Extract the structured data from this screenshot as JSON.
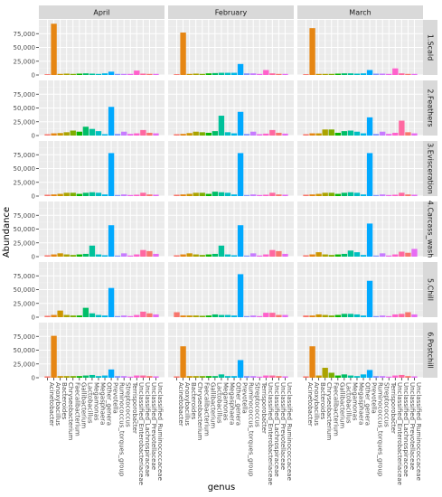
{
  "chart_data": {
    "type": "bar",
    "xlabel": "genus",
    "ylabel": "Abundance",
    "ylim": [
      0,
      100000
    ],
    "y_ticks": [
      0,
      25000,
      50000,
      75000
    ],
    "y_tick_labels": [
      "0",
      "25,000",
      "50,000",
      "75,000"
    ],
    "grid": true,
    "legend": "none",
    "columns": [
      "April",
      "February",
      "March"
    ],
    "rows": [
      "1.Scald",
      "2.Feathers",
      "3.Evisceration",
      "4.Carcass_wash",
      "5.Chill",
      "6.Postchill"
    ],
    "categories": [
      "Acinetobacter",
      "Anoxybacillus",
      "Bacteroides",
      "Chryseobacterium",
      "Faecalibacterium",
      "Gallibacterium",
      "Lactobacillus",
      "Megamonas",
      "Megasphaera",
      "Other_genera",
      "Prevotella",
      "Ruminococcus_torques_group",
      "Streptococcus",
      "Terrisporobacter",
      "Unclassified_Enterobacteriaceae",
      "Unclassified_Lachnospiraceae",
      "Unclassified_Prevotellaceae",
      "Unclassified_Ruminococcaceae"
    ],
    "colors": [
      "#F8766D",
      "#E68613",
      "#CD9600",
      "#ABA300",
      "#7CAE00",
      "#0CB702",
      "#00BE67",
      "#00C19A",
      "#00BFC4",
      "#00B8E7",
      "#00A9FF",
      "#8494FF",
      "#C77CFF",
      "#ED68ED",
      "#FF61CC",
      "#FF68A1",
      "#F8766D",
      "#E76BF3"
    ],
    "panels": [
      {
        "row": "1.Scald",
        "col": "April",
        "values": [
          1500,
          93000,
          2000,
          2500,
          2000,
          2500,
          3000,
          2500,
          2000,
          3000,
          6000,
          2000,
          2000,
          2000,
          8000,
          2500,
          2000,
          2000
        ]
      },
      {
        "row": "1.Scald",
        "col": "February",
        "values": [
          1500,
          77000,
          2000,
          2500,
          2000,
          3000,
          3500,
          4000,
          4000,
          4000,
          20000,
          3000,
          3000,
          2000,
          9000,
          3000,
          2000,
          2000
        ]
      },
      {
        "row": "1.Scald",
        "col": "March",
        "values": [
          1500,
          85000,
          2000,
          2000,
          2000,
          2500,
          3000,
          3000,
          2500,
          3000,
          9000,
          2500,
          2500,
          2000,
          12000,
          3000,
          2000,
          2000
        ]
      },
      {
        "row": "2.Feathers",
        "col": "April",
        "values": [
          2500,
          4000,
          4500,
          6000,
          9000,
          7000,
          16000,
          12000,
          8000,
          2500,
          52000,
          3000,
          7000,
          3000,
          4000,
          10000,
          5000,
          4000
        ]
      },
      {
        "row": "2.Feathers",
        "col": "February",
        "values": [
          2500,
          3000,
          4500,
          7000,
          6000,
          5000,
          8000,
          36000,
          6000,
          4000,
          43000,
          3000,
          7000,
          2500,
          3500,
          10000,
          5000,
          3500
        ]
      },
      {
        "row": "2.Feathers",
        "col": "March",
        "values": [
          2500,
          4000,
          4000,
          11000,
          11000,
          5000,
          8000,
          9000,
          7000,
          4000,
          33000,
          3000,
          7000,
          3000,
          5000,
          27000,
          6000,
          4000
        ]
      },
      {
        "row": "3.Evisceration",
        "col": "April",
        "values": [
          2500,
          3000,
          4000,
          6000,
          6000,
          4000,
          6000,
          7000,
          6000,
          3000,
          78000,
          2000,
          3000,
          2000,
          2500,
          6000,
          3000,
          2500
        ]
      },
      {
        "row": "3.Evisceration",
        "col": "February",
        "values": [
          2500,
          3000,
          4000,
          6000,
          6000,
          4000,
          8000,
          7000,
          6000,
          3000,
          78000,
          2000,
          3000,
          2000,
          2500,
          6000,
          3000,
          2500
        ]
      },
      {
        "row": "3.Evisceration",
        "col": "March",
        "values": [
          2500,
          3000,
          4000,
          6000,
          6000,
          4000,
          6000,
          7000,
          6000,
          3000,
          78000,
          2000,
          3000,
          2000,
          2500,
          6000,
          3000,
          2500
        ]
      },
      {
        "row": "4.Carcass_wash",
        "col": "April",
        "values": [
          2500,
          4000,
          6000,
          4000,
          3000,
          4000,
          5000,
          20000,
          4000,
          2500,
          57000,
          2000,
          6000,
          2000,
          4000,
          12000,
          10000,
          5000
        ]
      },
      {
        "row": "4.Carcass_wash",
        "col": "February",
        "values": [
          2500,
          4000,
          6000,
          4000,
          3000,
          4000,
          5000,
          20000,
          4000,
          2500,
          57000,
          2000,
          6000,
          2000,
          4000,
          12000,
          10000,
          5000
        ]
      },
      {
        "row": "4.Carcass_wash",
        "col": "March",
        "values": [
          2500,
          4000,
          8000,
          4000,
          3000,
          4000,
          5000,
          11000,
          8000,
          3000,
          60000,
          2000,
          6000,
          2000,
          4000,
          9000,
          7000,
          14000
        ]
      },
      {
        "row": "5.Chill",
        "col": "April",
        "values": [
          2500,
          4000,
          12000,
          4000,
          3000,
          3000,
          17000,
          7000,
          4000,
          3000,
          53000,
          2000,
          3000,
          2000,
          4000,
          10000,
          7000,
          5000
        ]
      },
      {
        "row": "5.Chill",
        "col": "February",
        "values": [
          9000,
          3000,
          3000,
          3000,
          2500,
          3000,
          5000,
          4000,
          4000,
          3000,
          78000,
          2000,
          3000,
          2000,
          8000,
          8000,
          4000,
          4000
        ]
      },
      {
        "row": "5.Chill",
        "col": "March",
        "values": [
          3000,
          3000,
          5000,
          4000,
          3000,
          4000,
          6000,
          6000,
          5000,
          3000,
          66000,
          2000,
          3000,
          2000,
          5000,
          6000,
          9000,
          5000
        ]
      },
      {
        "row": "6.Postchill",
        "col": "April",
        "values": [
          2500,
          76000,
          3000,
          3000,
          3000,
          3000,
          4000,
          5000,
          3000,
          4000,
          15000,
          3000,
          3000,
          2000,
          4000,
          4000,
          3000,
          2500
        ]
      },
      {
        "row": "6.Postchill",
        "col": "February",
        "values": [
          2500,
          57000,
          3000,
          3000,
          3000,
          3000,
          3000,
          6000,
          3000,
          3000,
          32000,
          3000,
          3000,
          2000,
          4000,
          4000,
          3000,
          2500
        ]
      },
      {
        "row": "6.Postchill",
        "col": "March",
        "values": [
          2500,
          57000,
          4000,
          18000,
          9000,
          4000,
          6000,
          4000,
          3000,
          6000,
          14000,
          3000,
          3000,
          2000,
          4000,
          5000,
          3000,
          2500
        ]
      }
    ]
  }
}
